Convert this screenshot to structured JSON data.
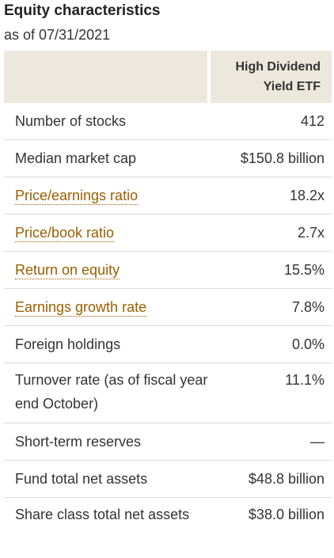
{
  "title": "Equity characteristics",
  "as_of": "as of 07/31/2021",
  "table": {
    "column_header": "High Dividend Yield ETF",
    "rows": [
      {
        "label": "Number of stocks",
        "value": "412"
      },
      {
        "label": "Median market cap",
        "value": "$150.8 billion"
      },
      {
        "label": "Price/earnings ratio",
        "value": "18.2x"
      },
      {
        "label": "Price/book ratio",
        "value": "2.7x"
      },
      {
        "label": "Return on equity",
        "value": "15.5%"
      },
      {
        "label": "Earnings growth rate",
        "value": "7.8%"
      },
      {
        "label": "Foreign holdings",
        "value": "0.0%"
      },
      {
        "label": "Turnover rate (as of fiscal year end October)",
        "value": "11.1%"
      },
      {
        "label": "Short-term reserves",
        "value": "—"
      },
      {
        "label": "Fund total net assets",
        "value": "$48.8 billion"
      },
      {
        "label": "Share class total net assets",
        "value": "$38.0 billion"
      }
    ]
  },
  "colors": {
    "header_bg": "#ece8de",
    "link": "#9a5f00",
    "divider": "#dcdcdc"
  }
}
